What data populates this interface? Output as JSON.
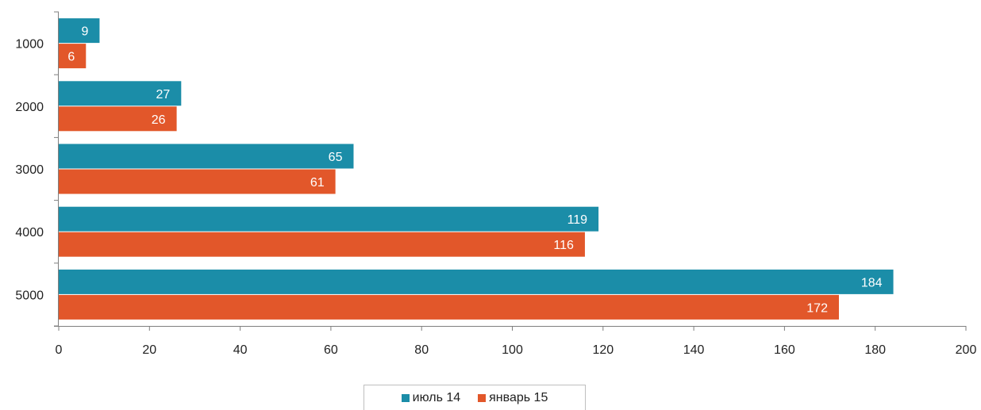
{
  "chart_data": {
    "type": "bar",
    "orientation": "horizontal",
    "categories": [
      "1000",
      "2000",
      "3000",
      "4000",
      "5000"
    ],
    "series": [
      {
        "name": "июль 14",
        "color": "#1b8da8",
        "values": [
          9,
          27,
          65,
          119,
          184
        ]
      },
      {
        "name": "январь 15",
        "color": "#e2572a",
        "values": [
          6,
          26,
          61,
          116,
          172
        ]
      }
    ],
    "xlim": [
      0,
      200
    ],
    "x_ticks": [
      "0",
      "20",
      "40",
      "60",
      "80",
      "100",
      "120",
      "140",
      "160",
      "180",
      "200"
    ],
    "data_labels": true,
    "grid": false,
    "legend_position": "bottom"
  }
}
